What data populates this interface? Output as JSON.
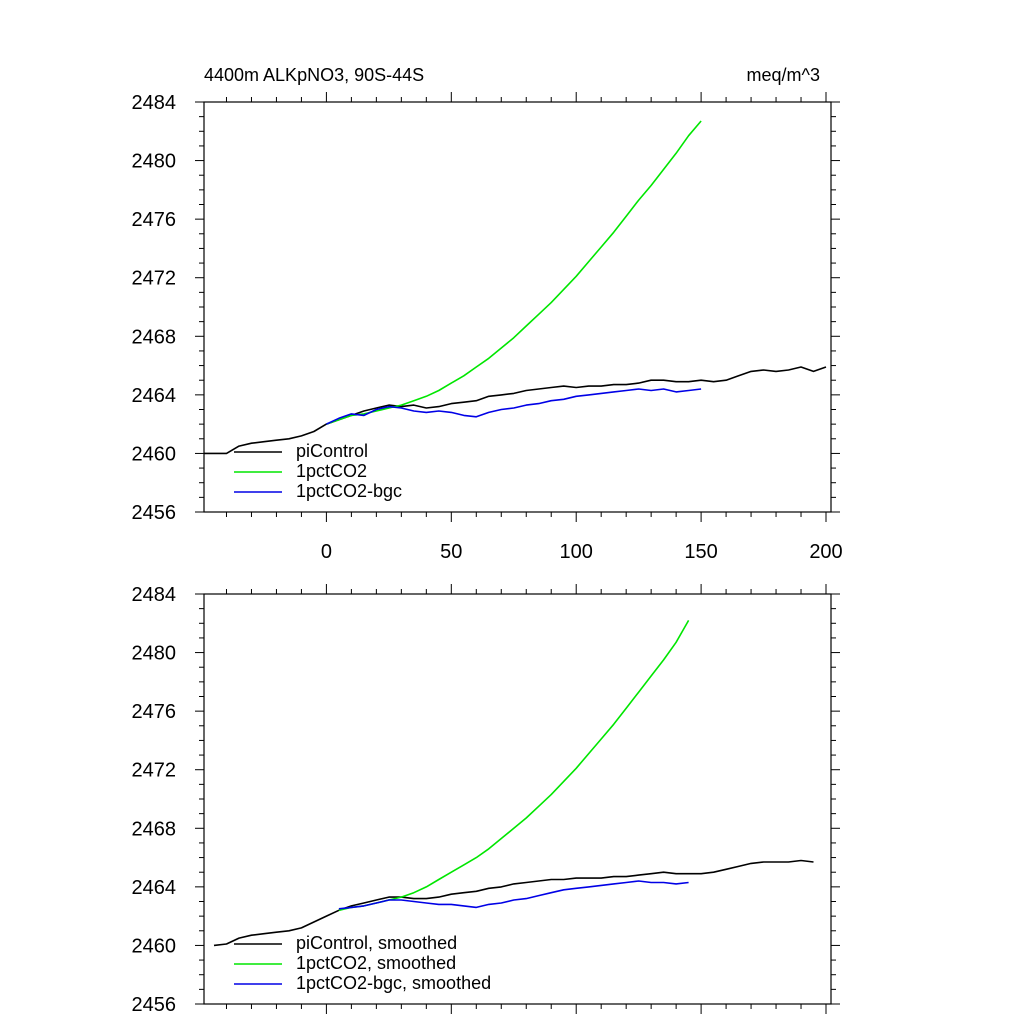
{
  "chart_data": [
    {
      "type": "line",
      "title": "4400m ALKpNO3, 90S-44S",
      "units": "meq/m^3",
      "xlim": [
        -49,
        202
      ],
      "ylim": [
        2456,
        2484
      ],
      "xticks": [
        0,
        50,
        100,
        150,
        200
      ],
      "yticks": [
        2456,
        2460,
        2464,
        2468,
        2472,
        2476,
        2480,
        2484
      ],
      "show_xticklabels": true,
      "legend_position": "lower-left",
      "series": [
        {
          "name": "piControl",
          "color": "#000000",
          "x": [
            -49,
            -44,
            -40,
            -35,
            -30,
            -25,
            -20,
            -15,
            -10,
            -5,
            0,
            5,
            10,
            15,
            20,
            25,
            30,
            35,
            40,
            45,
            50,
            55,
            60,
            65,
            70,
            75,
            80,
            85,
            90,
            95,
            100,
            105,
            110,
            115,
            120,
            125,
            130,
            135,
            140,
            145,
            150,
            155,
            160,
            165,
            170,
            175,
            180,
            185,
            190,
            195,
            200
          ],
          "y": [
            2460.0,
            2460.0,
            2460.0,
            2460.5,
            2460.7,
            2460.8,
            2460.9,
            2461.0,
            2461.2,
            2461.5,
            2462.0,
            2462.3,
            2462.6,
            2462.9,
            2463.1,
            2463.3,
            2463.2,
            2463.3,
            2463.1,
            2463.2,
            2463.4,
            2463.5,
            2463.6,
            2463.9,
            2464.0,
            2464.1,
            2464.3,
            2464.4,
            2464.5,
            2464.6,
            2464.5,
            2464.6,
            2464.6,
            2464.7,
            2464.7,
            2464.8,
            2465.0,
            2465.0,
            2464.9,
            2464.9,
            2465.0,
            2464.9,
            2465.0,
            2465.3,
            2465.6,
            2465.7,
            2465.6,
            2465.7,
            2465.9,
            2465.6,
            2465.9
          ]
        },
        {
          "name": "1pctCO2",
          "color": "#00e600",
          "x": [
            0,
            5,
            10,
            15,
            20,
            25,
            30,
            35,
            40,
            45,
            50,
            55,
            60,
            65,
            70,
            75,
            80,
            85,
            90,
            95,
            100,
            105,
            110,
            115,
            120,
            125,
            130,
            135,
            140,
            145,
            150
          ],
          "y": [
            2462.0,
            2462.3,
            2462.6,
            2462.7,
            2462.9,
            2463.1,
            2463.3,
            2463.6,
            2463.9,
            2464.3,
            2464.8,
            2465.3,
            2465.9,
            2466.5,
            2467.2,
            2467.9,
            2468.7,
            2469.5,
            2470.3,
            2471.2,
            2472.1,
            2473.1,
            2474.1,
            2475.1,
            2476.2,
            2477.3,
            2478.3,
            2479.4,
            2480.5,
            2481.7,
            2482.7
          ]
        },
        {
          "name": "1pctCO2-bgc",
          "color": "#0000e6",
          "x": [
            0,
            5,
            10,
            15,
            20,
            25,
            30,
            35,
            40,
            45,
            50,
            55,
            60,
            65,
            70,
            75,
            80,
            85,
            90,
            95,
            100,
            105,
            110,
            115,
            120,
            125,
            130,
            135,
            140,
            145,
            150
          ],
          "y": [
            2462.0,
            2462.4,
            2462.7,
            2462.6,
            2463.0,
            2463.2,
            2463.1,
            2462.9,
            2462.8,
            2462.9,
            2462.8,
            2462.6,
            2462.5,
            2462.8,
            2463.0,
            2463.1,
            2463.3,
            2463.4,
            2463.6,
            2463.7,
            2463.9,
            2464.0,
            2464.1,
            2464.2,
            2464.3,
            2464.4,
            2464.3,
            2464.4,
            2464.2,
            2464.3,
            2464.4
          ]
        }
      ]
    },
    {
      "type": "line",
      "xlim": [
        -49,
        202
      ],
      "ylim": [
        2456,
        2484
      ],
      "xticks": [
        0,
        50,
        100,
        150,
        200
      ],
      "yticks": [
        2456,
        2460,
        2464,
        2468,
        2472,
        2476,
        2480,
        2484
      ],
      "show_xticklabels": false,
      "legend_position": "lower-left",
      "series": [
        {
          "name": "piControl, smoothed",
          "color": "#000000",
          "x": [
            -45,
            -40,
            -35,
            -30,
            -25,
            -20,
            -15,
            -10,
            -5,
            0,
            5,
            10,
            15,
            20,
            25,
            30,
            35,
            40,
            45,
            50,
            55,
            60,
            65,
            70,
            75,
            80,
            85,
            90,
            95,
            100,
            105,
            110,
            115,
            120,
            125,
            130,
            135,
            140,
            145,
            150,
            155,
            160,
            165,
            170,
            175,
            180,
            185,
            190,
            195
          ],
          "y": [
            2460.0,
            2460.1,
            2460.5,
            2460.7,
            2460.8,
            2460.9,
            2461.0,
            2461.2,
            2461.6,
            2462.0,
            2462.4,
            2462.7,
            2462.9,
            2463.1,
            2463.3,
            2463.3,
            2463.2,
            2463.2,
            2463.3,
            2463.5,
            2463.6,
            2463.7,
            2463.9,
            2464.0,
            2464.2,
            2464.3,
            2464.4,
            2464.5,
            2464.5,
            2464.6,
            2464.6,
            2464.6,
            2464.7,
            2464.7,
            2464.8,
            2464.9,
            2465.0,
            2464.9,
            2464.9,
            2464.9,
            2465.0,
            2465.2,
            2465.4,
            2465.6,
            2465.7,
            2465.7,
            2465.7,
            2465.8,
            2465.7
          ]
        },
        {
          "name": "1pctCO2, smoothed",
          "color": "#00e600",
          "x": [
            5,
            10,
            15,
            20,
            25,
            30,
            35,
            40,
            45,
            50,
            55,
            60,
            65,
            70,
            75,
            80,
            85,
            90,
            95,
            100,
            105,
            110,
            115,
            120,
            125,
            130,
            135,
            140,
            145
          ],
          "y": [
            2462.4,
            2462.6,
            2462.7,
            2462.9,
            2463.1,
            2463.3,
            2463.6,
            2464.0,
            2464.5,
            2465.0,
            2465.5,
            2466.0,
            2466.6,
            2467.3,
            2468.0,
            2468.7,
            2469.5,
            2470.3,
            2471.2,
            2472.1,
            2473.1,
            2474.1,
            2475.1,
            2476.2,
            2477.3,
            2478.4,
            2479.5,
            2480.7,
            2482.2
          ]
        },
        {
          "name": "1pctCO2-bgc, smoothed",
          "color": "#0000e6",
          "x": [
            5,
            10,
            15,
            20,
            25,
            30,
            35,
            40,
            45,
            50,
            55,
            60,
            65,
            70,
            75,
            80,
            85,
            90,
            95,
            100,
            105,
            110,
            115,
            120,
            125,
            130,
            135,
            140,
            145
          ],
          "y": [
            2462.5,
            2462.6,
            2462.7,
            2462.9,
            2463.1,
            2463.1,
            2463.0,
            2462.9,
            2462.8,
            2462.8,
            2462.7,
            2462.6,
            2462.8,
            2462.9,
            2463.1,
            2463.2,
            2463.4,
            2463.6,
            2463.8,
            2463.9,
            2464.0,
            2464.1,
            2464.2,
            2464.3,
            2464.4,
            2464.3,
            2464.3,
            2464.2,
            2464.3
          ]
        }
      ]
    }
  ]
}
